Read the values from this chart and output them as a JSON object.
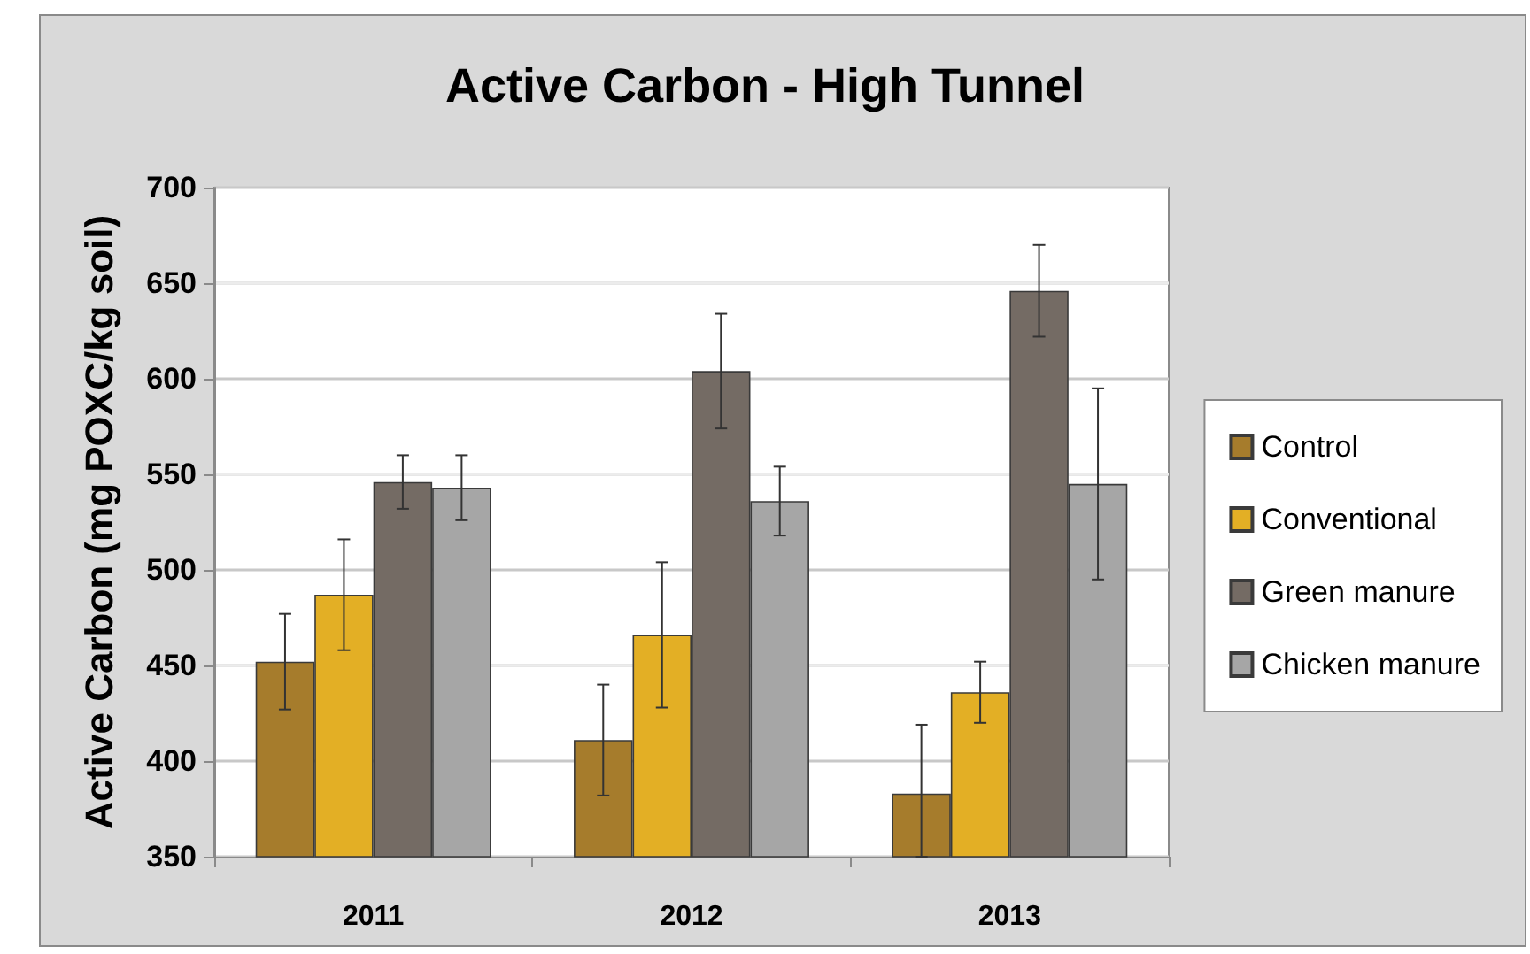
{
  "chart_data": {
    "type": "bar",
    "title": "Active Carbon - High Tunnel",
    "ylabel": "Active Carbon (mg POXC/kg soil)",
    "categories": [
      "2011",
      "2012",
      "2013"
    ],
    "series": [
      {
        "name": "Control",
        "color": "#a67c2c",
        "values": [
          452,
          411,
          383
        ],
        "errors": [
          25,
          29,
          [
            350,
            419
          ]
        ]
      },
      {
        "name": "Conventional",
        "color": "#e3af25",
        "values": [
          487,
          466,
          436
        ],
        "errors": [
          29,
          38,
          16
        ]
      },
      {
        "name": "Green manure",
        "color": "#746b64",
        "values": [
          546,
          604,
          646
        ],
        "errors": [
          14,
          30,
          24
        ]
      },
      {
        "name": "Chicken manure",
        "color": "#a6a6a6",
        "values": [
          543,
          536,
          545
        ],
        "errors": [
          17,
          18,
          50
        ]
      }
    ],
    "ylim": [
      350,
      700
    ],
    "yticks": [
      350,
      400,
      450,
      500,
      550,
      600,
      650,
      700
    ],
    "grid": "y",
    "legend": "right"
  }
}
